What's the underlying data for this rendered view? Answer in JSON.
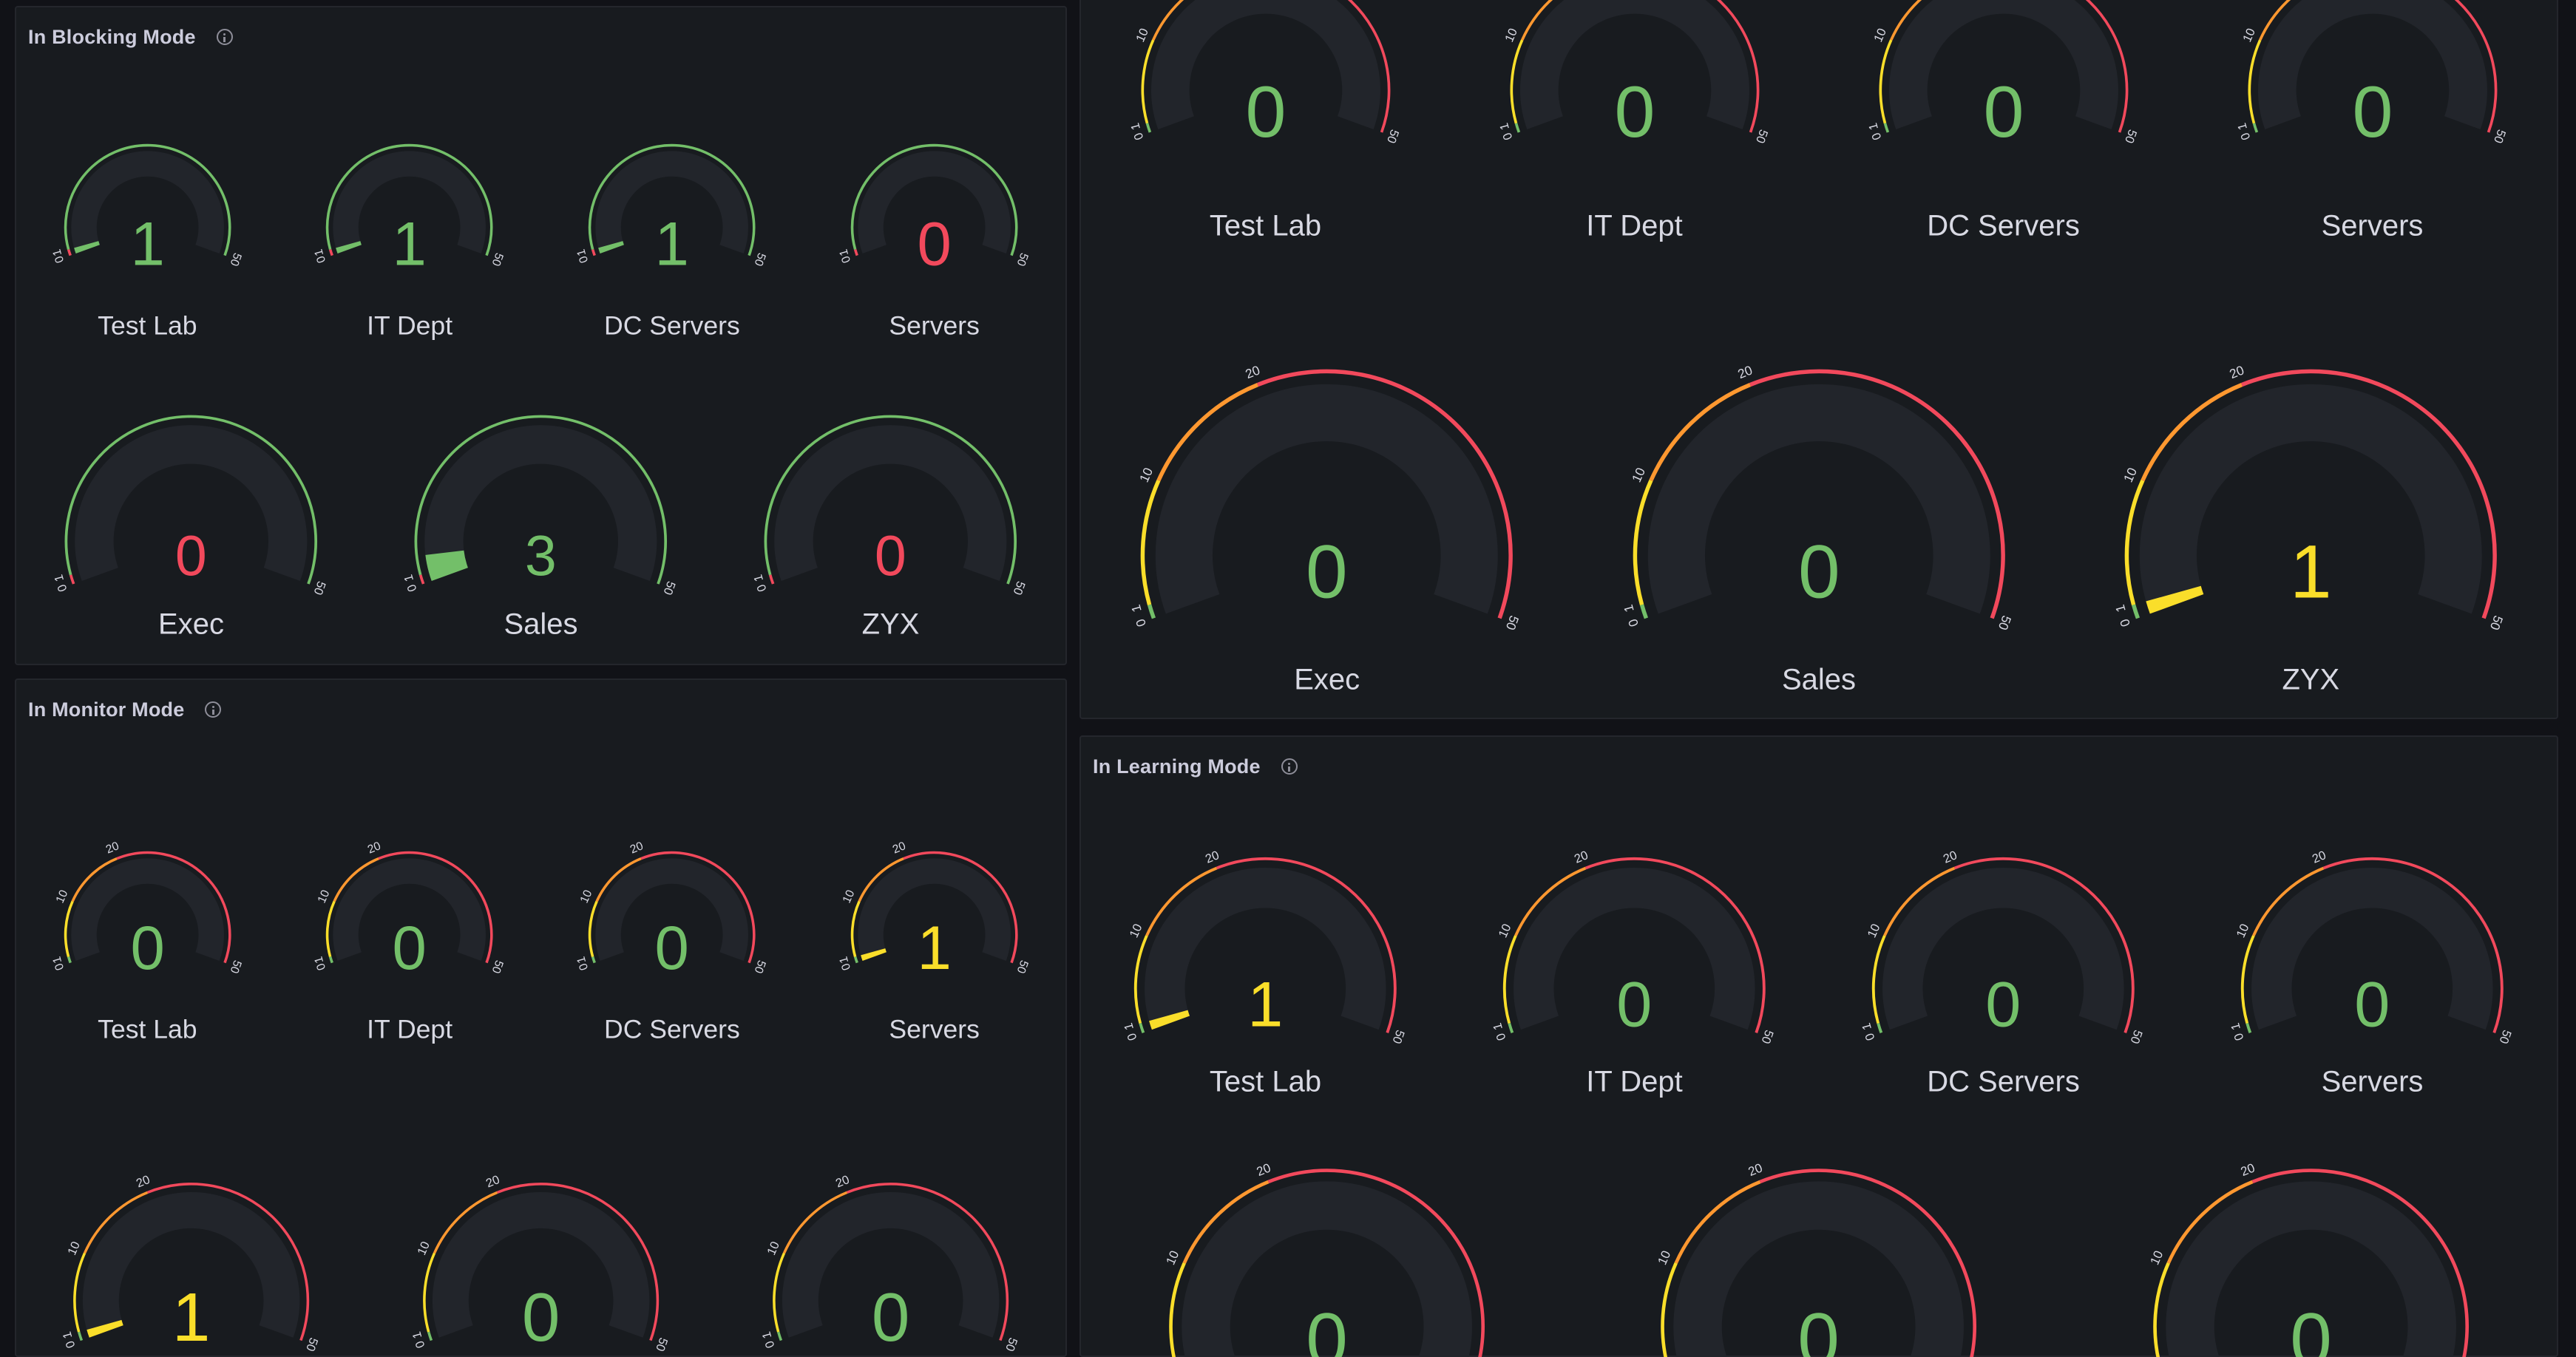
{
  "colors": {
    "green": "#73bf69",
    "yellow": "#fade2a",
    "orange": "#ff9830",
    "red": "#f2495c",
    "band": "#22252b",
    "text": "#ccccdc"
  },
  "panels": [
    {
      "id": "blocking",
      "title": "In Blocking Mode",
      "min": 0,
      "max": 50,
      "thresholds": [
        {
          "value": 0,
          "color": "#f2495c"
        },
        {
          "value": 1,
          "color": "#73bf69"
        }
      ],
      "rows": [
        [
          {
            "name": "Test Lab",
            "value": 1
          },
          {
            "name": "IT Dept",
            "value": 1
          },
          {
            "name": "DC Servers",
            "value": 1
          },
          {
            "name": "Servers",
            "value": 0
          }
        ],
        [
          {
            "name": "Exec",
            "value": 0
          },
          {
            "name": "Sales",
            "value": 3
          },
          {
            "name": "ZYX",
            "value": 0
          }
        ]
      ]
    },
    {
      "id": "monitor",
      "title": "In Monitor Mode",
      "min": 0,
      "max": 50,
      "thresholds": [
        {
          "value": 0,
          "color": "#73bf69"
        },
        {
          "value": 1,
          "color": "#fade2a"
        },
        {
          "value": 10,
          "color": "#ff9830"
        },
        {
          "value": 20,
          "color": "#f2495c"
        }
      ],
      "rows": [
        [
          {
            "name": "Test Lab",
            "value": 0
          },
          {
            "name": "IT Dept",
            "value": 0
          },
          {
            "name": "DC Servers",
            "value": 0
          },
          {
            "name": "Servers",
            "value": 1
          }
        ],
        [
          {
            "name": "",
            "value": 1
          },
          {
            "name": "",
            "value": 0
          },
          {
            "name": "",
            "value": 0
          }
        ]
      ]
    },
    {
      "id": "top",
      "min": 0,
      "max": 50,
      "thresholds": [
        {
          "value": 0,
          "color": "#73bf69"
        },
        {
          "value": 1,
          "color": "#fade2a"
        },
        {
          "value": 10,
          "color": "#ff9830"
        },
        {
          "value": 20,
          "color": "#f2495c"
        }
      ],
      "rows": [
        [
          {
            "name": "Test Lab",
            "value": 0
          },
          {
            "name": "IT Dept",
            "value": 0
          },
          {
            "name": "DC Servers",
            "value": 0
          },
          {
            "name": "Servers",
            "value": 0
          }
        ],
        [
          {
            "name": "Exec",
            "value": 0
          },
          {
            "name": "Sales",
            "value": 0
          },
          {
            "name": "ZYX",
            "value": 1
          }
        ]
      ]
    },
    {
      "id": "learning",
      "title": "In Learning Mode",
      "min": 0,
      "max": 50,
      "thresholds": [
        {
          "value": 0,
          "color": "#73bf69"
        },
        {
          "value": 1,
          "color": "#fade2a"
        },
        {
          "value": 10,
          "color": "#ff9830"
        },
        {
          "value": 20,
          "color": "#f2495c"
        }
      ],
      "rows": [
        [
          {
            "name": "Test Lab",
            "value": 1
          },
          {
            "name": "IT Dept",
            "value": 0
          },
          {
            "name": "DC Servers",
            "value": 0
          },
          {
            "name": "Servers",
            "value": 0
          }
        ],
        [
          {
            "name": "",
            "value": 0
          },
          {
            "name": "",
            "value": 0
          },
          {
            "name": "",
            "value": 0
          }
        ]
      ]
    }
  ]
}
